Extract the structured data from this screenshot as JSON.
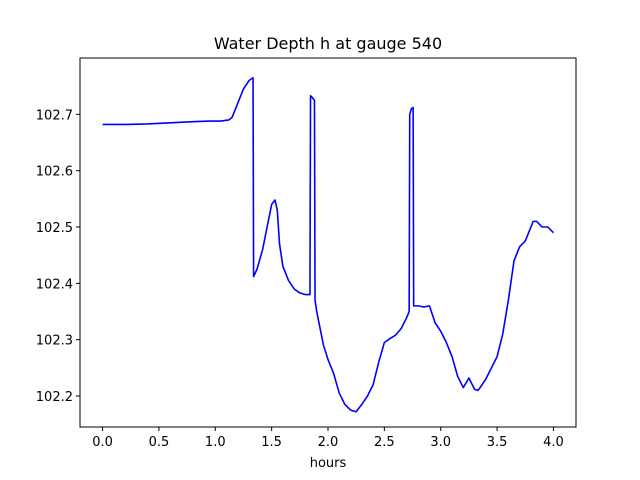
{
  "chart_data": {
    "type": "line",
    "title": "Water Depth h at gauge 540",
    "xlabel": "hours",
    "ylabel": "",
    "xlim": [
      -0.2,
      4.2
    ],
    "ylim": [
      102.145,
      102.8
    ],
    "xticks": [
      0.0,
      0.5,
      1.0,
      1.5,
      2.0,
      2.5,
      3.0,
      3.5,
      4.0
    ],
    "xtick_labels": [
      "0.0",
      "0.5",
      "1.0",
      "1.5",
      "2.0",
      "2.5",
      "3.0",
      "3.5",
      "4.0"
    ],
    "yticks": [
      102.2,
      102.3,
      102.4,
      102.5,
      102.6,
      102.7
    ],
    "ytick_labels": [
      "102.2",
      "102.3",
      "102.4",
      "102.5",
      "102.6",
      "102.7"
    ],
    "grid": false,
    "series": [
      {
        "color": "#0000ff",
        "x": [
          0.0,
          0.2,
          0.4,
          0.6,
          0.8,
          0.95,
          1.05,
          1.12,
          1.15,
          1.2,
          1.25,
          1.3,
          1.335,
          1.34,
          1.37,
          1.42,
          1.46,
          1.5,
          1.53,
          1.55,
          1.57,
          1.6,
          1.65,
          1.7,
          1.75,
          1.8,
          1.84,
          1.845,
          1.86,
          1.88,
          1.885,
          1.9,
          1.93,
          1.96,
          2.0,
          2.05,
          2.1,
          2.15,
          2.2,
          2.25,
          2.28,
          2.3,
          2.35,
          2.4,
          2.45,
          2.5,
          2.55,
          2.6,
          2.65,
          2.7,
          2.72,
          2.725,
          2.74,
          2.755,
          2.76,
          2.8,
          2.85,
          2.9,
          2.95,
          3.0,
          3.05,
          3.1,
          3.15,
          3.2,
          3.25,
          3.28,
          3.3,
          3.33,
          3.35,
          3.4,
          3.45,
          3.5,
          3.55,
          3.6,
          3.65,
          3.7,
          3.75,
          3.8,
          3.82,
          3.85,
          3.9,
          3.95,
          4.0
        ],
        "y": [
          102.682,
          102.682,
          102.683,
          102.685,
          102.687,
          102.688,
          102.688,
          102.69,
          102.695,
          102.72,
          102.745,
          102.76,
          102.765,
          102.412,
          102.425,
          102.46,
          102.5,
          102.54,
          102.548,
          102.53,
          102.47,
          102.43,
          102.405,
          102.39,
          102.383,
          102.38,
          102.38,
          102.733,
          102.73,
          102.725,
          102.37,
          102.35,
          102.32,
          102.29,
          102.265,
          102.24,
          102.205,
          102.185,
          102.175,
          102.172,
          102.18,
          102.185,
          102.2,
          102.22,
          102.26,
          102.295,
          102.302,
          102.308,
          102.32,
          102.34,
          102.35,
          102.7,
          102.71,
          102.712,
          102.36,
          102.36,
          102.358,
          102.36,
          102.33,
          102.315,
          102.295,
          102.27,
          102.235,
          102.215,
          102.232,
          102.22,
          102.212,
          102.21,
          102.215,
          102.23,
          102.25,
          102.27,
          102.31,
          102.37,
          102.44,
          102.465,
          102.475,
          102.5,
          102.51,
          102.51,
          102.5,
          102.5,
          102.49
        ]
      }
    ]
  }
}
